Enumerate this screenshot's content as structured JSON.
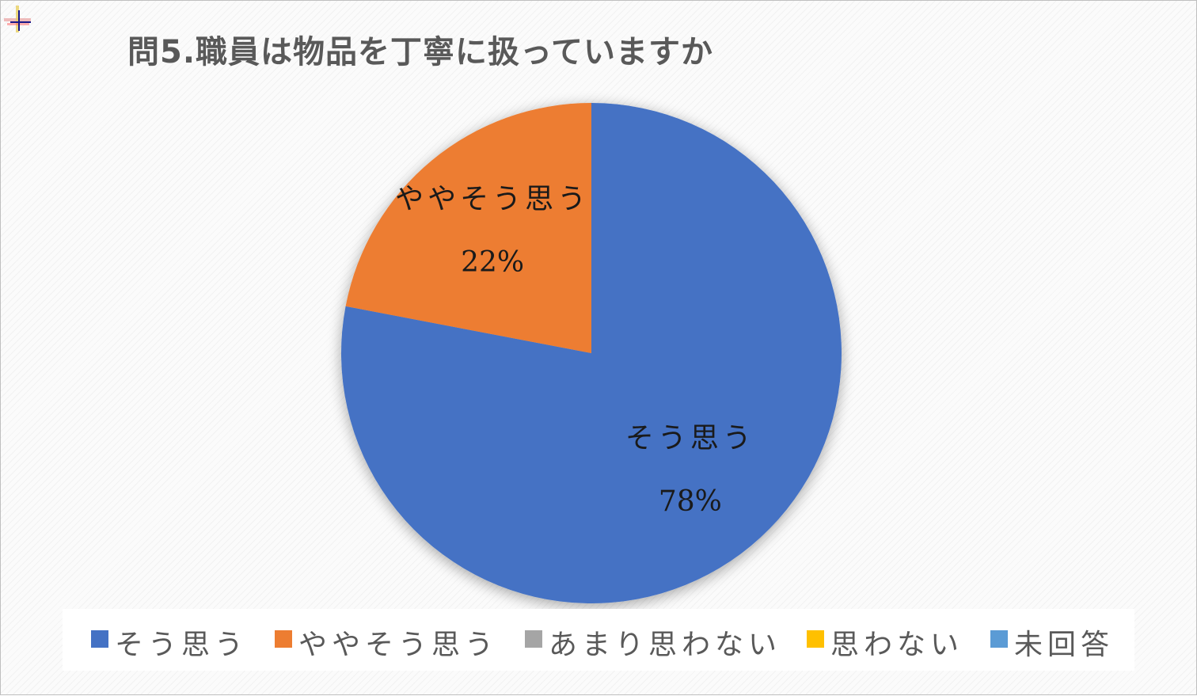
{
  "title": "問5.職員は物品を丁寧に扱っていますか",
  "chart_data": {
    "type": "pie",
    "title": "問5.職員は物品を丁寧に扱っていますか",
    "categories": [
      "そう思う",
      "ややそう思う",
      "あまり思わない",
      "思わない",
      "未回答"
    ],
    "values": [
      78,
      22,
      0,
      0,
      0
    ],
    "colors": [
      "#4472c4",
      "#ed7d31",
      "#a5a5a5",
      "#ffc000",
      "#5b9bd5"
    ],
    "data_labels": [
      {
        "name": "そう思う",
        "value": "78%"
      },
      {
        "name": "ややそう思う",
        "value": "22%"
      }
    ],
    "legend_position": "bottom"
  },
  "legend": [
    {
      "label": "そう思う",
      "color": "#4472c4"
    },
    {
      "label": "ややそう思う",
      "color": "#ed7d31"
    },
    {
      "label": "あまり思わない",
      "color": "#a5a5a5"
    },
    {
      "label": "思わない",
      "color": "#ffc000"
    },
    {
      "label": "未回答",
      "color": "#5b9bd5"
    }
  ]
}
